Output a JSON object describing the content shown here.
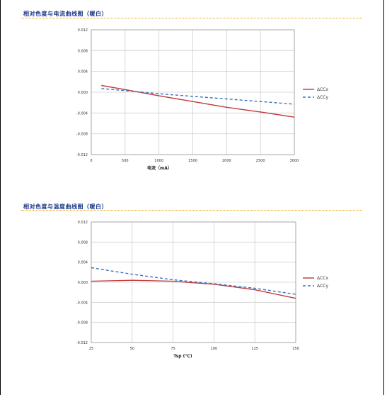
{
  "colors": {
    "series_x": "#c0393b",
    "series_y": "#3a72c4",
    "title": "#1e3a8a",
    "rule": "#f0a000",
    "grid": "#d0d0d0"
  },
  "chart_data": [
    {
      "type": "line",
      "title": "相对色度与电流曲线图（暖白）",
      "xlabel": "电流（mA）",
      "ylabel": "",
      "xlim": [
        0,
        3000
      ],
      "ylim": [
        -0.012,
        0.012
      ],
      "x_ticks": [
        0,
        500,
        1000,
        1500,
        2000,
        2500,
        3000
      ],
      "y_ticks": [
        0.012,
        0.008,
        0.004,
        0.0,
        -0.004,
        -0.008,
        -0.012
      ],
      "y_tick_labels": [
        "0.012",
        "0.008",
        "0.004",
        "0.000",
        "-0.004",
        "-0.008",
        "-0.012"
      ],
      "grid": true,
      "legend": "right",
      "series": [
        {
          "name": "ΔCCx",
          "style": "solid",
          "x": [
            150,
            500,
            1000,
            1500,
            2000,
            2500,
            3000
          ],
          "y": [
            0.0013,
            0.0005,
            -0.0007,
            -0.0018,
            -0.0029,
            -0.0038,
            -0.0048
          ]
        },
        {
          "name": "ΔCCy",
          "style": "dashed",
          "x": [
            150,
            500,
            1000,
            1500,
            2000,
            2500,
            3000
          ],
          "y": [
            0.0007,
            0.0003,
            -0.0003,
            -0.0008,
            -0.0013,
            -0.0018,
            -0.0023
          ]
        }
      ]
    },
    {
      "type": "line",
      "title": "相对色度与温度曲线图（暖白）",
      "xlabel": "Tsp (°C)",
      "ylabel": "",
      "xlim": [
        25,
        150
      ],
      "ylim": [
        -0.012,
        0.012
      ],
      "x_ticks": [
        25,
        50,
        75,
        100,
        125,
        150
      ],
      "y_ticks": [
        0.012,
        0.008,
        0.004,
        0.0,
        -0.004,
        -0.008,
        -0.012
      ],
      "y_tick_labels": [
        "0.012",
        "0.008",
        "0.004",
        "0.000",
        "-0.004",
        "-0.008",
        "-0.012"
      ],
      "grid": true,
      "legend": "right",
      "series": [
        {
          "name": "ΔCCx",
          "style": "solid",
          "x": [
            25,
            50,
            75,
            100,
            125,
            150
          ],
          "y": [
            0.0002,
            0.0004,
            0.0002,
            -0.0004,
            -0.0015,
            -0.0032
          ]
        },
        {
          "name": "ΔCCy",
          "style": "dashed",
          "x": [
            25,
            50,
            75,
            100,
            125,
            150
          ],
          "y": [
            0.0029,
            0.0016,
            0.0005,
            -0.0003,
            -0.0012,
            -0.0024
          ]
        }
      ]
    }
  ]
}
